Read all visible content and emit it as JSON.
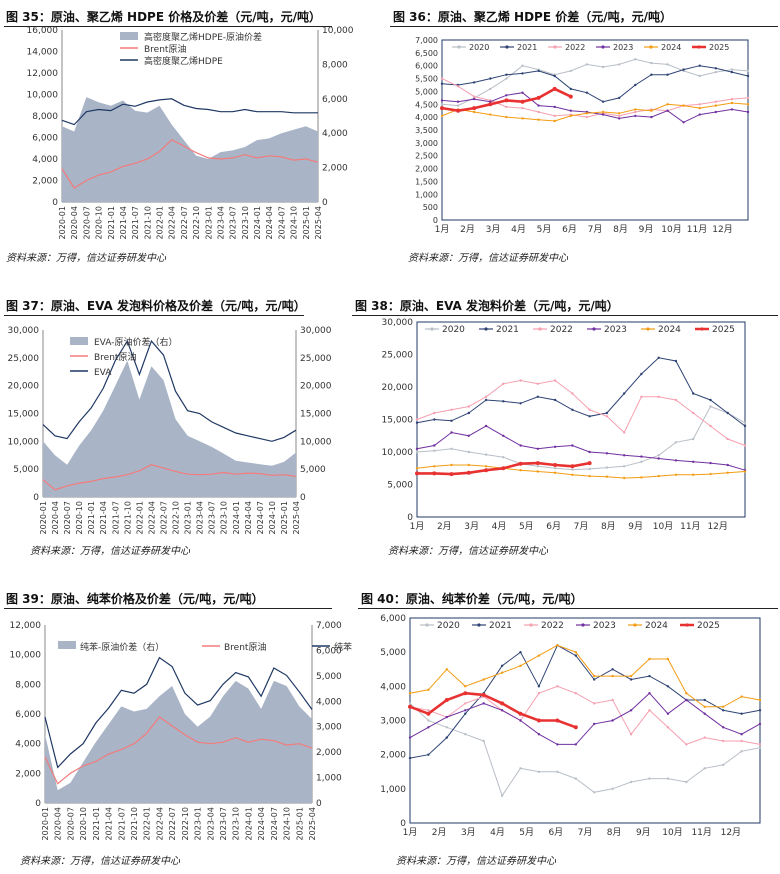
{
  "colors": {
    "area": "#a9b4c7",
    "brent": "#f37b7b",
    "product": "#1f3864",
    "axis": "#555555"
  },
  "charts": [
    {
      "num": "35",
      "title": "图 35：原油、聚乙烯 HDPE 价格及价差（元/吨，元/吨）",
      "source": "资料来源：万得，信达证券研发中心"
    },
    {
      "num": "36",
      "title": "图 36：原油、聚乙烯 HDPE 价差（元/吨，元/吨）",
      "source": "资料来源：万得，信达证券研发中心"
    },
    {
      "num": "37",
      "title": "图 37：原油、EVA 发泡料价格及价差（元/吨，元/吨）",
      "source": "资料来源：万得，信达证券研发中心"
    },
    {
      "num": "38",
      "title": "图 38：原油、EVA 发泡料价差（元/吨，元/吨）",
      "source": "资料来源：万得，信达证券研发中心"
    },
    {
      "num": "39",
      "title": "图 39：原油、纯苯价格及价差（元/吨，元/吨）",
      "source": "资料来源：万得，信达证券研发中心"
    },
    {
      "num": "40",
      "title": "图 40：原油、纯苯价差（元/吨，元/吨）",
      "source": "资料来源：万得，信达证券研发中心"
    }
  ],
  "chart_data": [
    {
      "id": "c35",
      "type": "area+line",
      "title": "原油、聚乙烯 HDPE 价格及价差",
      "x_labels": [
        "2020-01",
        "2020-04",
        "2020-07",
        "2020-10",
        "2021-01",
        "2021-04",
        "2021-07",
        "2021-10",
        "2022-01",
        "2022-04",
        "2022-07",
        "2022-10",
        "2023-01",
        "2023-04",
        "2023-07",
        "2023-10",
        "2024-01",
        "2024-04",
        "2024-07",
        "2024-10",
        "2025-01",
        "2025-04"
      ],
      "left_ticks": [
        0,
        2000,
        4000,
        6000,
        8000,
        10000,
        12000,
        14000,
        16000
      ],
      "right_ticks": [
        0,
        2000,
        4000,
        6000,
        8000,
        10000
      ],
      "ylim_left": [
        0,
        16000
      ],
      "ylim_right": [
        0,
        10000
      ],
      "legend": [
        "高密度聚乙烯HDPE-原油价差",
        "Brent原油",
        "高密度聚乙烯HDPE"
      ],
      "series": [
        {
          "name": "高密度聚乙烯HDPE-原油价差",
          "axis": "right",
          "kind": "area",
          "values": [
            4400,
            4100,
            6100,
            5800,
            5600,
            5900,
            5300,
            5200,
            5600,
            4500,
            3600,
            2700,
            2500,
            2900,
            3000,
            3200,
            3600,
            3700,
            4000,
            4200,
            4400,
            4100
          ]
        },
        {
          "name": "Brent原油",
          "axis": "left",
          "kind": "line",
          "values": [
            3100,
            1300,
            2000,
            2500,
            2800,
            3300,
            3600,
            4000,
            4700,
            5800,
            5200,
            4600,
            4100,
            4000,
            4100,
            4400,
            4100,
            4300,
            4200,
            3900,
            4000,
            3700
          ]
        },
        {
          "name": "高密度聚乙烯HDPE",
          "axis": "left",
          "kind": "line",
          "values": [
            7600,
            7200,
            8400,
            8600,
            8500,
            9100,
            8900,
            9300,
            9500,
            9600,
            9000,
            8700,
            8600,
            8400,
            8400,
            8600,
            8400,
            8400,
            8400,
            8300,
            8300,
            8300
          ]
        }
      ]
    },
    {
      "id": "c36",
      "type": "line",
      "title": "原油、聚乙烯 HDPE 价差",
      "x_labels": [
        "1月",
        "2月",
        "3月",
        "4月",
        "5月",
        "6月",
        "7月",
        "8月",
        "9月",
        "10月",
        "11月",
        "12月"
      ],
      "ticks": [
        0,
        500,
        1000,
        1500,
        2000,
        2500,
        3000,
        3500,
        4000,
        4500,
        5000,
        5500,
        6000,
        6500,
        7000
      ],
      "ylim": [
        0,
        7000
      ],
      "legend": [
        "2020",
        "2021",
        "2022",
        "2023",
        "2024",
        "2025"
      ],
      "series": [
        {
          "name": "2020",
          "color": "#b9bfc7",
          "values": [
            4500,
            4450,
            4750,
            5100,
            5500,
            6000,
            5850,
            5650,
            5800,
            6050,
            5950,
            6050,
            6250,
            6100,
            6050,
            5800,
            5600,
            5750,
            5850,
            5800
          ]
        },
        {
          "name": "2021",
          "color": "#2e4374",
          "values": [
            5300,
            5250,
            5350,
            5500,
            5650,
            5700,
            5800,
            5600,
            5100,
            4950,
            4600,
            4750,
            5250,
            5650,
            5650,
            5850,
            6000,
            5900,
            5750,
            5600
          ]
        },
        {
          "name": "2022",
          "color": "#f5a0b0",
          "values": [
            5500,
            5200,
            4800,
            4650,
            4400,
            4350,
            4200,
            4050,
            4100,
            4000,
            4150,
            4050,
            4200,
            4300,
            4250,
            4450,
            4500,
            4600,
            4700,
            4750
          ]
        },
        {
          "name": "2023",
          "color": "#7030a0",
          "values": [
            4650,
            4600,
            4700,
            4600,
            4850,
            4950,
            4450,
            4400,
            4250,
            4200,
            4100,
            3950,
            4050,
            4000,
            4250,
            3800,
            4100,
            4200,
            4300,
            4200
          ]
        },
        {
          "name": "2024",
          "color": "#f39c12",
          "values": [
            4050,
            4300,
            4200,
            4100,
            4000,
            3950,
            3900,
            3850,
            4050,
            4150,
            4200,
            4150,
            4300,
            4250,
            4500,
            4450,
            4350,
            4450,
            4550,
            4500
          ]
        },
        {
          "name": "2025",
          "color": "#e83232",
          "bold": true,
          "values": [
            4350,
            4250,
            4350,
            4500,
            4650,
            4600,
            4750,
            5100,
            4800
          ]
        }
      ]
    },
    {
      "id": "c37",
      "type": "area+line",
      "title": "原油、EVA 发泡料价格及价差",
      "x_labels": [
        "2020-01",
        "2020-04",
        "2020-07",
        "2020-10",
        "2021-01",
        "2021-04",
        "2021-07",
        "2021-10",
        "2022-01",
        "2022-04",
        "2022-07",
        "2022-10",
        "2023-01",
        "2023-04",
        "2023-07",
        "2023-10",
        "2024-01",
        "2024-04",
        "2024-07",
        "2024-10",
        "2025-01",
        "2025-04"
      ],
      "left_ticks": [
        0,
        5000,
        10000,
        15000,
        20000,
        25000,
        30000
      ],
      "right_ticks": [
        0,
        5000,
        10000,
        15000,
        20000,
        25000,
        30000
      ],
      "ylim_left": [
        0,
        30000
      ],
      "ylim_right": [
        0,
        30000
      ],
      "legend": [
        "EVA-原油价差（右）",
        "Brent原油",
        "EVA"
      ],
      "series": [
        {
          "name": "EVA-原油价差（右）",
          "axis": "right",
          "kind": "area",
          "values": [
            10000,
            7500,
            5800,
            9200,
            12000,
            15500,
            20000,
            24500,
            17500,
            23500,
            21000,
            14000,
            11000,
            10000,
            9000,
            7800,
            6500,
            6200,
            5900,
            5600,
            6300,
            8000
          ]
        },
        {
          "name": "Brent原油",
          "axis": "left",
          "kind": "line",
          "values": [
            3100,
            1300,
            2000,
            2500,
            2800,
            3300,
            3600,
            4000,
            4700,
            5800,
            5200,
            4600,
            4100,
            4000,
            4100,
            4400,
            4100,
            4300,
            4200,
            3900,
            4000,
            3700
          ]
        },
        {
          "name": "EVA",
          "axis": "left",
          "kind": "line",
          "values": [
            13000,
            11000,
            10500,
            13500,
            16000,
            19500,
            24500,
            28000,
            22000,
            28000,
            25500,
            19000,
            15500,
            15000,
            13500,
            12500,
            11500,
            11000,
            10500,
            10000,
            10700,
            12000
          ]
        }
      ]
    },
    {
      "id": "c38",
      "type": "line",
      "title": "原油、EVA 发泡料价差",
      "x_labels": [
        "1月",
        "2月",
        "3月",
        "4月",
        "5月",
        "6月",
        "7月",
        "8月",
        "9月",
        "10月",
        "11月",
        "12月"
      ],
      "ticks": [
        0,
        5000,
        10000,
        15000,
        20000,
        25000,
        30000
      ],
      "ylim": [
        0,
        30000
      ],
      "legend": [
        "2020",
        "2021",
        "2022",
        "2023",
        "2024",
        "2025"
      ],
      "series": [
        {
          "name": "2020",
          "color": "#b9bfc7",
          "values": [
            10000,
            10200,
            10500,
            10000,
            9600,
            9200,
            8200,
            7800,
            7500,
            7300,
            7400,
            7600,
            7800,
            8500,
            9500,
            11500,
            12000,
            17000,
            16000,
            14500
          ]
        },
        {
          "name": "2021",
          "color": "#2e4374",
          "values": [
            14500,
            15000,
            14800,
            16000,
            18000,
            17800,
            17500,
            18500,
            18000,
            16500,
            15500,
            16000,
            19000,
            22000,
            24500,
            24000,
            19000,
            18000,
            16000,
            14000
          ]
        },
        {
          "name": "2022",
          "color": "#f5a0b0",
          "values": [
            15000,
            16000,
            16500,
            17000,
            18500,
            20500,
            21000,
            20500,
            21000,
            19000,
            16500,
            15500,
            13000,
            18500,
            18500,
            18000,
            16000,
            14000,
            12000,
            11000
          ]
        },
        {
          "name": "2023",
          "color": "#7030a0",
          "values": [
            10500,
            11000,
            13000,
            12500,
            14000,
            12500,
            11000,
            10500,
            10800,
            11000,
            10000,
            9800,
            9500,
            9300,
            9000,
            8700,
            8500,
            8300,
            8000,
            7200
          ]
        },
        {
          "name": "2024",
          "color": "#f39c12",
          "values": [
            7500,
            7800,
            8000,
            8000,
            7800,
            7500,
            7200,
            7000,
            6800,
            6500,
            6300,
            6200,
            6000,
            6100,
            6300,
            6500,
            6500,
            6600,
            6800,
            7000
          ]
        },
        {
          "name": "2025",
          "color": "#e83232",
          "bold": true,
          "values": [
            6700,
            6700,
            6600,
            6800,
            7200,
            7500,
            8200,
            8300,
            8000,
            7800,
            8300
          ]
        }
      ]
    },
    {
      "id": "c39",
      "type": "area+line",
      "title": "原油、纯苯价格及价差",
      "x_labels": [
        "2020-01",
        "2020-04",
        "2020-07",
        "2020-10",
        "2021-01",
        "2021-04",
        "2021-07",
        "2021-10",
        "2022-01",
        "2022-04",
        "2022-07",
        "2022-10",
        "2023-01",
        "2023-04",
        "2023-07",
        "2023-10",
        "2024-01",
        "2024-04",
        "2024-07",
        "2024-10",
        "2025-01",
        "2025-04"
      ],
      "left_ticks": [
        0,
        2000,
        4000,
        6000,
        8000,
        10000,
        12000
      ],
      "right_ticks": [
        0,
        1000,
        2000,
        3000,
        4000,
        5000,
        6000,
        7000
      ],
      "ylim_left": [
        0,
        12000
      ],
      "ylim_right": [
        0,
        7000
      ],
      "legend": [
        "纯苯-原油价差（右）",
        "Brent原油",
        "纯苯"
      ],
      "series": [
        {
          "name": "纯苯-原油价差（右）",
          "axis": "right",
          "kind": "area",
          "values": [
            2700,
            500,
            800,
            1600,
            2400,
            3100,
            3800,
            3600,
            3700,
            4200,
            4600,
            3500,
            3000,
            3400,
            4200,
            4800,
            4500,
            3700,
            4800,
            4600,
            3800,
            3300
          ]
        },
        {
          "name": "Brent原油",
          "axis": "left",
          "kind": "line",
          "values": [
            3100,
            1300,
            2000,
            2500,
            2800,
            3300,
            3600,
            4000,
            4700,
            5800,
            5200,
            4600,
            4100,
            4000,
            4100,
            4400,
            4100,
            4300,
            4200,
            3900,
            4000,
            3700
          ]
        },
        {
          "name": "纯苯",
          "axis": "left",
          "kind": "line",
          "values": [
            5800,
            2400,
            3300,
            4000,
            5400,
            6400,
            7600,
            7400,
            8000,
            9800,
            9200,
            7400,
            6600,
            6900,
            8000,
            8800,
            8500,
            7200,
            9100,
            8600,
            7500,
            6300
          ]
        }
      ]
    },
    {
      "id": "c40",
      "type": "line",
      "title": "原油、纯苯价差",
      "x_labels": [
        "1月",
        "2月",
        "3月",
        "4月",
        "5月",
        "6月",
        "7月",
        "8月",
        "9月",
        "10月",
        "11月",
        "12月"
      ],
      "ticks": [
        0,
        1000,
        2000,
        3000,
        4000,
        5000,
        6000
      ],
      "ylim": [
        0,
        6000
      ],
      "legend": [
        "2020",
        "2021",
        "2022",
        "2023",
        "2024",
        "2025"
      ],
      "series": [
        {
          "name": "2020",
          "color": "#b9bfc7",
          "values": [
            3500,
            3000,
            2800,
            2600,
            2400,
            800,
            1600,
            1500,
            1500,
            1300,
            900,
            1000,
            1200,
            1300,
            1300,
            1200,
            1600,
            1700,
            2100,
            2200
          ]
        },
        {
          "name": "2021",
          "color": "#2e4374",
          "values": [
            1900,
            2000,
            2500,
            3200,
            3800,
            4600,
            5000,
            4000,
            5200,
            4900,
            4200,
            4500,
            4200,
            4300,
            4000,
            3600,
            3600,
            3300,
            3200,
            3300
          ]
        },
        {
          "name": "2022",
          "color": "#f5a0b0",
          "values": [
            3400,
            3300,
            3100,
            3500,
            3700,
            3300,
            3000,
            3800,
            4000,
            3800,
            3500,
            3600,
            2600,
            3300,
            2800,
            2300,
            2500,
            2400,
            2400,
            2300
          ]
        },
        {
          "name": "2023",
          "color": "#7030a0",
          "values": [
            2500,
            2800,
            3100,
            3300,
            3500,
            3300,
            3000,
            2600,
            2300,
            2300,
            2900,
            3000,
            3300,
            3800,
            3200,
            3600,
            3200,
            2800,
            2600,
            2900
          ]
        },
        {
          "name": "2024",
          "color": "#f39c12",
          "values": [
            3800,
            3900,
            4500,
            4000,
            4200,
            4400,
            4600,
            4900,
            5200,
            5000,
            4300,
            4300,
            4300,
            4800,
            4800,
            3800,
            3400,
            3400,
            3700,
            3600
          ]
        },
        {
          "name": "2025",
          "color": "#e83232",
          "bold": true,
          "values": [
            3400,
            3200,
            3600,
            3800,
            3750,
            3500,
            3200,
            3000,
            3000,
            2800
          ]
        }
      ]
    }
  ]
}
